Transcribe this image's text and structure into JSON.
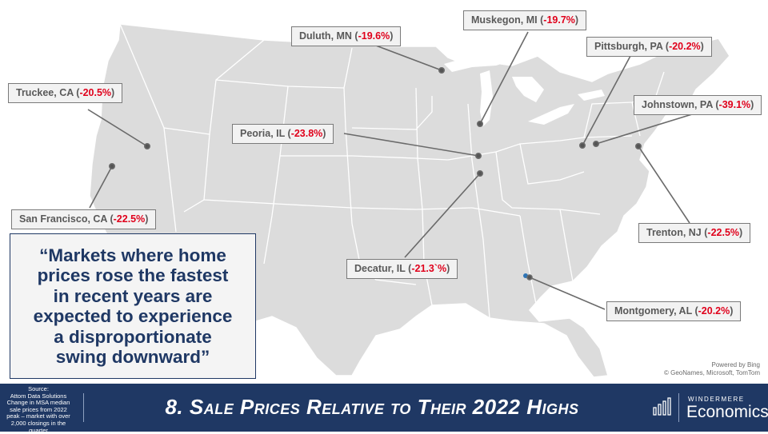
{
  "map": {
    "credit_line1": "Powered by Bing",
    "credit_line2": "© GeoNames, Microsoft, TomTom",
    "land_color": "#dcdcdc",
    "border_color": "#ffffff",
    "leader_color": "#6a6a6a",
    "dot_color": "#555555"
  },
  "markers": [
    {
      "name": "Truckee, CA (",
      "pct": "-20.5%",
      "tail": ")"
    },
    {
      "name": "San Francisco, CA (",
      "pct": "-22.5%",
      "tail": ")"
    },
    {
      "name": "Duluth, MN  (",
      "pct": "-19.6%",
      "tail": ")"
    },
    {
      "name": "Muskegon, MI  (",
      "pct": "-19.7%",
      "tail": ")"
    },
    {
      "name": "Pittsburgh, PA (",
      "pct": "-20.2%",
      "tail": ")"
    },
    {
      "name": "Johnstown, PA (",
      "pct": "-39.1%",
      "tail": ")"
    },
    {
      "name": "Peoria, IL  (",
      "pct": "-23.8%",
      "tail": ")"
    },
    {
      "name": "Decatur, IL  (",
      "pct": "-21.3`%",
      "tail": ")"
    },
    {
      "name": "Trenton, NJ (",
      "pct": "-22.5%",
      "tail": ")"
    },
    {
      "name": "Montgomery, AL  (",
      "pct": "-20.2%",
      "tail": ")"
    }
  ],
  "quote": {
    "line1": "“Markets where home",
    "line2": "prices rose the fastest",
    "line3": "in recent years are",
    "line4": "expected to experience",
    "line5": "a disproportionate",
    "line6": "swing downward”"
  },
  "footer": {
    "source": [
      "Source:",
      "Attom Data Solutions",
      "Change in MSA median",
      "sale prices from 2022",
      "peak – market with over",
      "2,000 closings in the",
      "quarter"
    ],
    "title": "8. Sale Prices Relative to Their 2022 Highs",
    "brand_top": "WINDERMERE",
    "brand_bottom": "Economics",
    "color": "#1f3864"
  }
}
